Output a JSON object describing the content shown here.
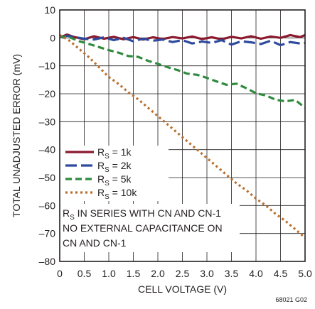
{
  "figure_id": "68021 G02",
  "chart_data": {
    "type": "line",
    "title": "",
    "xlabel": "CELL VOLTAGE (V)",
    "ylabel": "TOTAL UNADJUSTED ERROR (mV)",
    "xlim": [
      0,
      5.0
    ],
    "ylim": [
      -80,
      10
    ],
    "xticks": [
      "0",
      "0.5",
      "1.0",
      "1.5",
      "2.0",
      "2.5",
      "3.0",
      "3.5",
      "4.0",
      "4.5",
      "5.0"
    ],
    "yticks": [
      "10",
      "0",
      "–10",
      "–20",
      "–30",
      "–40",
      "–50",
      "–60",
      "–70",
      "–80"
    ],
    "grid": true,
    "legend_placement": "lower-left",
    "annotation_lines": [
      "R_S IN SERIES WITH CN AND CN-1",
      "NO EXTERNAL CAPACITANCE ON",
      "CN AND CN-1"
    ],
    "series": [
      {
        "name": "RS = 1k",
        "sub": "S",
        "main": "R",
        "rest": " = 1k",
        "color": "#8b1a2e",
        "dash": "",
        "x": [
          0.05,
          0.15,
          0.3,
          0.5,
          0.7,
          0.9,
          1.1,
          1.3,
          1.5,
          1.7,
          1.9,
          2.1,
          2.3,
          2.5,
          2.7,
          2.9,
          3.1,
          3.3,
          3.5,
          3.7,
          3.9,
          4.1,
          4.3,
          4.5,
          4.7,
          4.9,
          5.0
        ],
        "y": [
          0.5,
          1.2,
          0.3,
          -0.5,
          0.6,
          -0.3,
          0.4,
          -0.5,
          0.3,
          -0.6,
          0.2,
          -0.4,
          0.3,
          -0.2,
          0.5,
          -0.4,
          0.2,
          -0.5,
          0.4,
          -0.2,
          0.6,
          -0.3,
          0.5,
          0.0,
          1.0,
          0.3,
          1.0
        ]
      },
      {
        "name": "RS = 2k",
        "sub": "S",
        "main": "R",
        "rest": " = 2k",
        "color": "#2e4a9e",
        "dash": "16,6",
        "x": [
          0.05,
          0.15,
          0.3,
          0.5,
          0.7,
          0.9,
          1.1,
          1.3,
          1.5,
          1.7,
          1.9,
          2.1,
          2.3,
          2.5,
          2.7,
          2.9,
          3.1,
          3.3,
          3.5,
          3.7,
          3.9,
          4.1,
          4.3,
          4.5,
          4.7,
          4.9,
          5.0
        ],
        "y": [
          0.0,
          0.8,
          0.3,
          -0.3,
          -0.6,
          0.2,
          -0.8,
          0.0,
          -1.2,
          -0.3,
          -1.0,
          -0.6,
          -1.5,
          -0.8,
          -2.0,
          -1.3,
          -1.8,
          -0.8,
          -2.4,
          -1.2,
          -1.6,
          -2.2,
          -1.0,
          -2.6,
          -1.5,
          -2.0,
          -1.8
        ]
      },
      {
        "name": "RS = 5k",
        "sub": "S",
        "main": "R",
        "rest": " = 5k",
        "color": "#2e8b3e",
        "dash": "9,5",
        "x": [
          0.0,
          0.2,
          0.4,
          0.6,
          0.8,
          1.0,
          1.2,
          1.4,
          1.6,
          1.8,
          2.0,
          2.2,
          2.4,
          2.6,
          2.8,
          3.0,
          3.2,
          3.4,
          3.6,
          3.8,
          4.0,
          4.2,
          4.4,
          4.6,
          4.8,
          5.0
        ],
        "y": [
          0.5,
          0.2,
          -1.2,
          -2.2,
          -3.3,
          -4.4,
          -5.3,
          -6.5,
          -6.8,
          -8.2,
          -9.3,
          -10.5,
          -11.5,
          -12.8,
          -13.2,
          -14.3,
          -15.6,
          -16.8,
          -16.4,
          -18.0,
          -19.8,
          -20.6,
          -22.1,
          -22.7,
          -22.2,
          -25.0
        ]
      },
      {
        "name": "RS = 10k",
        "sub": "S",
        "main": "R",
        "rest": " = 10k",
        "color": "#b86f2d",
        "dash": "3,4",
        "x": [
          0.0,
          0.2,
          0.4,
          0.6,
          0.8,
          1.0,
          1.2,
          1.4,
          1.6,
          1.8,
          2.0,
          2.2,
          2.4,
          2.6,
          2.8,
          3.0,
          3.2,
          3.4,
          3.6,
          3.8,
          4.0,
          4.2,
          4.4,
          4.6,
          4.8,
          5.0
        ],
        "y": [
          1.0,
          -1.0,
          -4.0,
          -7.0,
          -10.5,
          -14.0,
          -16.5,
          -19.5,
          -22.0,
          -25.0,
          -28.0,
          -31.0,
          -34.0,
          -37.0,
          -40.0,
          -43.0,
          -46.0,
          -49.0,
          -52.0,
          -54.5,
          -57.5,
          -60.0,
          -63.0,
          -65.5,
          -68.5,
          -71.5
        ]
      }
    ]
  }
}
